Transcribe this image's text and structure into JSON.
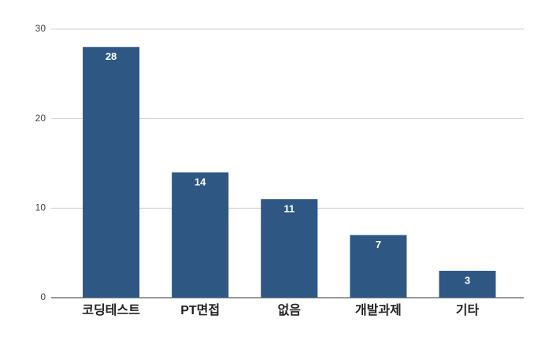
{
  "chart_data": {
    "type": "bar",
    "categories": [
      "코딩테스트",
      "PT면접",
      "없음",
      "개발과제",
      "기타"
    ],
    "values": [
      28,
      14,
      11,
      7,
      3
    ],
    "color": "#2e5783",
    "ylim": [
      0,
      30
    ],
    "yticks": [
      0,
      10,
      20,
      30
    ],
    "grid": true
  }
}
